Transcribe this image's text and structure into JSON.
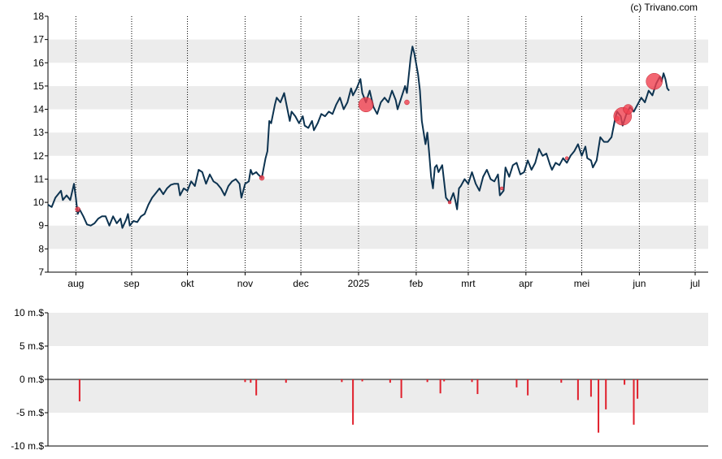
{
  "credit": "(c) Trivano.com",
  "colors": {
    "line": "#0d3350",
    "band": "#ececec",
    "marker": "#f0404f",
    "volume": "#e0202c",
    "grid": "#000000"
  },
  "chart_data": [
    {
      "type": "line",
      "ylim": [
        7,
        18
      ],
      "yticks": [
        7,
        8,
        9,
        10,
        11,
        12,
        13,
        14,
        15,
        16,
        17,
        18
      ],
      "xlim": [
        0,
        355
      ],
      "xticks": [
        {
          "label": "aug",
          "x": 15
        },
        {
          "label": "sep",
          "x": 45
        },
        {
          "label": "okt",
          "x": 75
        },
        {
          "label": "nov",
          "x": 106
        },
        {
          "label": "dec",
          "x": 136
        },
        {
          "label": "2025",
          "x": 167
        },
        {
          "label": "feb",
          "x": 198
        },
        {
          "label": "mrt",
          "x": 226
        },
        {
          "label": "apr",
          "x": 257
        },
        {
          "label": "mei",
          "x": 287
        },
        {
          "label": "jun",
          "x": 318
        },
        {
          "label": "jul",
          "x": 348
        }
      ],
      "series": [
        {
          "points": [
            [
              0,
              9.9
            ],
            [
              2,
              9.8
            ],
            [
              4,
              10.2
            ],
            [
              6,
              10.4
            ],
            [
              7,
              10.5
            ],
            [
              8,
              10.1
            ],
            [
              10,
              10.3
            ],
            [
              12,
              10.1
            ],
            [
              14,
              10.8
            ],
            [
              15,
              10.2
            ],
            [
              16,
              9.5
            ],
            [
              17,
              9.7
            ],
            [
              19,
              9.4
            ],
            [
              21,
              9.05
            ],
            [
              23,
              9.0
            ],
            [
              25,
              9.1
            ],
            [
              27,
              9.3
            ],
            [
              29,
              9.4
            ],
            [
              31,
              9.4
            ],
            [
              33,
              9.0
            ],
            [
              35,
              9.4
            ],
            [
              37,
              9.1
            ],
            [
              39,
              9.3
            ],
            [
              40,
              8.9
            ],
            [
              42,
              9.25
            ],
            [
              43,
              9.5
            ],
            [
              44,
              9.0
            ],
            [
              46,
              9.2
            ],
            [
              48,
              9.15
            ],
            [
              50,
              9.4
            ],
            [
              52,
              9.5
            ],
            [
              54,
              9.9
            ],
            [
              56,
              10.2
            ],
            [
              58,
              10.4
            ],
            [
              60,
              10.6
            ],
            [
              62,
              10.35
            ],
            [
              64,
              10.6
            ],
            [
              66,
              10.75
            ],
            [
              68,
              10.8
            ],
            [
              70,
              10.8
            ],
            [
              71,
              10.3
            ],
            [
              73,
              10.6
            ],
            [
              75,
              10.5
            ],
            [
              77,
              10.9
            ],
            [
              79,
              10.7
            ],
            [
              81,
              11.4
            ],
            [
              83,
              11.3
            ],
            [
              85,
              10.8
            ],
            [
              87,
              11.2
            ],
            [
              89,
              10.9
            ],
            [
              91,
              10.8
            ],
            [
              93,
              10.6
            ],
            [
              95,
              10.3
            ],
            [
              97,
              10.7
            ],
            [
              99,
              10.9
            ],
            [
              101,
              11.0
            ],
            [
              103,
              10.8
            ],
            [
              104,
              10.2
            ],
            [
              106,
              10.8
            ],
            [
              108,
              10.9
            ],
            [
              109,
              11.4
            ],
            [
              110,
              11.2
            ],
            [
              112,
              11.3
            ],
            [
              113,
              11.2
            ],
            [
              115,
              11.05
            ],
            [
              117,
              11.9
            ],
            [
              118,
              12.2
            ],
            [
              119,
              13.5
            ],
            [
              120,
              13.4
            ],
            [
              122,
              14.2
            ],
            [
              123,
              14.5
            ],
            [
              125,
              14.3
            ],
            [
              127,
              14.7
            ],
            [
              128,
              14.3
            ],
            [
              130,
              13.5
            ],
            [
              131,
              13.9
            ],
            [
              133,
              13.7
            ],
            [
              135,
              13.4
            ],
            [
              137,
              13.7
            ],
            [
              138,
              13.3
            ],
            [
              140,
              13.2
            ],
            [
              142,
              13.5
            ],
            [
              143,
              13.1
            ],
            [
              145,
              13.4
            ],
            [
              147,
              13.8
            ],
            [
              149,
              13.7
            ],
            [
              151,
              13.9
            ],
            [
              153,
              13.8
            ],
            [
              155,
              14.2
            ],
            [
              157,
              14.5
            ],
            [
              159,
              14.0
            ],
            [
              161,
              14.3
            ],
            [
              163,
              14.9
            ],
            [
              164,
              14.6
            ],
            [
              166,
              14.9
            ],
            [
              168,
              15.3
            ],
            [
              169,
              14.7
            ],
            [
              171,
              14.3
            ],
            [
              173,
              14.8
            ],
            [
              175,
              14.1
            ],
            [
              177,
              13.8
            ],
            [
              179,
              14.3
            ],
            [
              181,
              14.5
            ],
            [
              183,
              14.3
            ],
            [
              185,
              14.8
            ],
            [
              187,
              14.4
            ],
            [
              188,
              14.0
            ],
            [
              190,
              14.5
            ],
            [
              192,
              15.0
            ],
            [
              193,
              14.7
            ],
            [
              195,
              16.2
            ],
            [
              196,
              16.7
            ],
            [
              197,
              16.4
            ],
            [
              199,
              15.5
            ],
            [
              200,
              14.8
            ],
            [
              201,
              13.5
            ],
            [
              203,
              12.5
            ],
            [
              204,
              13.0
            ],
            [
              205,
              12.1
            ],
            [
              206,
              11.1
            ],
            [
              207,
              10.6
            ],
            [
              208,
              11.5
            ],
            [
              209,
              11.6
            ],
            [
              210,
              11.3
            ],
            [
              212,
              11.6
            ],
            [
              213,
              10.9
            ],
            [
              214,
              10.2
            ],
            [
              216,
              10.0
            ],
            [
              218,
              10.4
            ],
            [
              219,
              10.1
            ],
            [
              220,
              9.7
            ],
            [
              221,
              10.6
            ],
            [
              222,
              10.7
            ],
            [
              224,
              11.0
            ],
            [
              226,
              10.8
            ],
            [
              228,
              11.3
            ],
            [
              230,
              10.8
            ],
            [
              232,
              10.5
            ],
            [
              234,
              11.1
            ],
            [
              236,
              11.4
            ],
            [
              238,
              11.0
            ],
            [
              240,
              10.9
            ],
            [
              242,
              11.2
            ],
            [
              243,
              10.3
            ],
            [
              245,
              10.5
            ],
            [
              246,
              11.5
            ],
            [
              248,
              11.1
            ],
            [
              250,
              11.6
            ],
            [
              252,
              11.7
            ],
            [
              254,
              11.2
            ],
            [
              256,
              11.3
            ],
            [
              258,
              11.8
            ],
            [
              260,
              11.4
            ],
            [
              262,
              11.7
            ],
            [
              264,
              12.3
            ],
            [
              266,
              12.0
            ],
            [
              268,
              12.1
            ],
            [
              270,
              11.6
            ],
            [
              271,
              11.4
            ],
            [
              273,
              11.7
            ],
            [
              275,
              11.6
            ],
            [
              277,
              11.9
            ],
            [
              279,
              11.7
            ],
            [
              281,
              12.0
            ],
            [
              283,
              12.2
            ],
            [
              285,
              12.5
            ],
            [
              287,
              12.0
            ],
            [
              289,
              12.4
            ],
            [
              290,
              11.9
            ],
            [
              292,
              11.8
            ],
            [
              293,
              11.5
            ],
            [
              295,
              11.8
            ],
            [
              297,
              12.8
            ],
            [
              299,
              12.6
            ],
            [
              301,
              12.6
            ],
            [
              303,
              12.8
            ],
            [
              305,
              13.6
            ],
            [
              306,
              13.9
            ],
            [
              308,
              13.7
            ],
            [
              309,
              13.3
            ],
            [
              311,
              13.8
            ],
            [
              313,
              14.1
            ],
            [
              315,
              13.9
            ],
            [
              317,
              14.2
            ],
            [
              319,
              14.5
            ],
            [
              321,
              14.3
            ],
            [
              323,
              14.8
            ],
            [
              325,
              14.6
            ],
            [
              327,
              15.1
            ],
            [
              329,
              15.4
            ],
            [
              330,
              15.2
            ],
            [
              331,
              15.55
            ],
            [
              332,
              15.3
            ],
            [
              333,
              14.9
            ],
            [
              334,
              14.8
            ]
          ]
        }
      ],
      "markers": [
        {
          "x": 16,
          "y": 9.7,
          "size": 3
        },
        {
          "x": 115,
          "y": 11.05,
          "size": 3
        },
        {
          "x": 171,
          "y": 14.2,
          "size": 9
        },
        {
          "x": 193,
          "y": 14.3,
          "size": 3
        },
        {
          "x": 216,
          "y": 10.0,
          "size": 2
        },
        {
          "x": 244,
          "y": 10.6,
          "size": 2
        },
        {
          "x": 279,
          "y": 11.9,
          "size": 2
        },
        {
          "x": 306,
          "y": 13.6,
          "size": 3
        },
        {
          "x": 309,
          "y": 13.7,
          "size": 11
        },
        {
          "x": 312,
          "y": 14.0,
          "size": 6
        },
        {
          "x": 326,
          "y": 15.2,
          "size": 10
        }
      ]
    },
    {
      "type": "bar",
      "ylim": [
        -10,
        10
      ],
      "yticks": [
        {
          "value": 10,
          "label": "10 m.$"
        },
        {
          "value": 5,
          "label": "5 m.$"
        },
        {
          "value": 0,
          "label": "0 m.$"
        },
        {
          "value": -5,
          "label": "-5 m.$"
        },
        {
          "value": -10,
          "label": "-10 m.$"
        }
      ],
      "bars": [
        {
          "x": 17,
          "value": -3.3
        },
        {
          "x": 106,
          "value": -0.4
        },
        {
          "x": 109,
          "value": -0.5
        },
        {
          "x": 112,
          "value": -2.4
        },
        {
          "x": 128,
          "value": -0.5
        },
        {
          "x": 158,
          "value": -0.4
        },
        {
          "x": 164,
          "value": -6.8
        },
        {
          "x": 169,
          "value": -0.3
        },
        {
          "x": 184,
          "value": -0.5
        },
        {
          "x": 190,
          "value": -2.8
        },
        {
          "x": 204,
          "value": -0.4
        },
        {
          "x": 211,
          "value": -2.1
        },
        {
          "x": 213,
          "value": -0.3
        },
        {
          "x": 228,
          "value": -0.4
        },
        {
          "x": 231,
          "value": -2.2
        },
        {
          "x": 252,
          "value": -1.2
        },
        {
          "x": 258,
          "value": -2.4
        },
        {
          "x": 276,
          "value": -0.5
        },
        {
          "x": 285,
          "value": -3.1
        },
        {
          "x": 292,
          "value": -2.6
        },
        {
          "x": 296,
          "value": -8.0
        },
        {
          "x": 300,
          "value": -4.5
        },
        {
          "x": 310,
          "value": -0.8
        },
        {
          "x": 315,
          "value": -6.8
        },
        {
          "x": 317,
          "value": -2.9
        }
      ]
    }
  ]
}
